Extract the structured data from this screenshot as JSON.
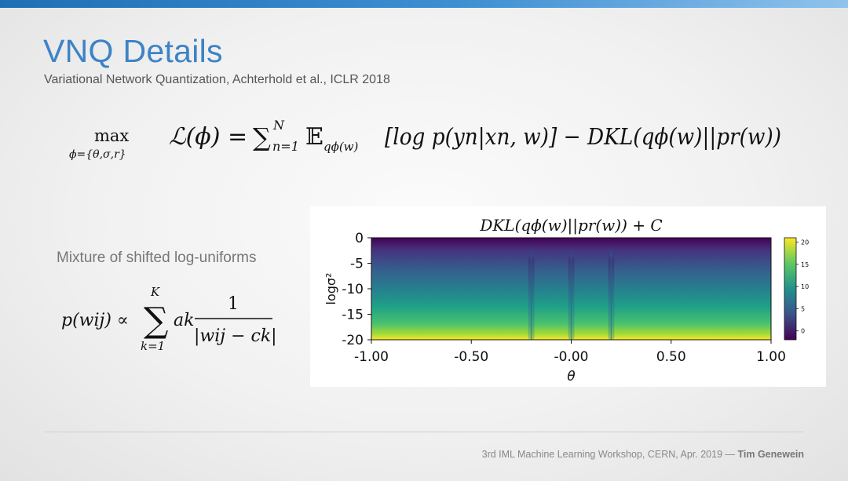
{
  "slide": {
    "title": "VNQ Details",
    "subtitle": "Variational Network Quantization, Achterhold et al., ICLR 2018",
    "accent_color": "#3d83c6",
    "top_bar_colors": [
      "#1f6fb5",
      "#8fc3ec"
    ]
  },
  "equation": {
    "op": "max",
    "op_sub": "ϕ={θ,σ,r}",
    "lhs": "ℒ(ϕ) =",
    "sum": "∑",
    "sum_sup": "N",
    "sum_sub": "n=1",
    "expect": "𝔼",
    "expect_sub": "qϕ(w)",
    "body": "[log p(yn|xn, w)] − DKL(qϕ(w)||pr(w))"
  },
  "mixture": {
    "label": "Mixture of shifted log-uniforms",
    "lhs": "p(wij) ∝",
    "sum_sup": "K",
    "sum_sub": "k=1",
    "coef": "ak",
    "numerator": "1",
    "denominator": "|wij − ck|"
  },
  "chart_data": {
    "type": "heatmap",
    "title": "DKL(qϕ(w)||pr(w)) + C",
    "xlabel": "θ",
    "ylabel": "logσ²",
    "xlim": [
      -1.0,
      1.0
    ],
    "ylim": [
      -20,
      0
    ],
    "x_ticks": [
      "-1.00",
      "-0.50",
      "-0.00",
      "0.50",
      "1.00"
    ],
    "x_tick_values": [
      -1.0,
      -0.5,
      0.0,
      0.5,
      1.0
    ],
    "y_ticks": [
      "0",
      "-5",
      "-10",
      "-15",
      "-20"
    ],
    "y_tick_values": [
      0,
      -5,
      -10,
      -15,
      -20
    ],
    "valleys_at_theta": [
      -0.2,
      0.0,
      0.2
    ],
    "colormap": "viridis",
    "colorbar_ticks": [
      "20",
      "15",
      "10",
      "5",
      "0"
    ],
    "colorbar_tick_values": [
      20,
      15,
      10,
      5,
      0
    ],
    "zlim": [
      -2,
      21
    ],
    "grid": false
  },
  "footer": {
    "text": "3rd IML Machine Learning Workshop, CERN, Apr. 2019 — ",
    "author": "Tim Genewein"
  }
}
